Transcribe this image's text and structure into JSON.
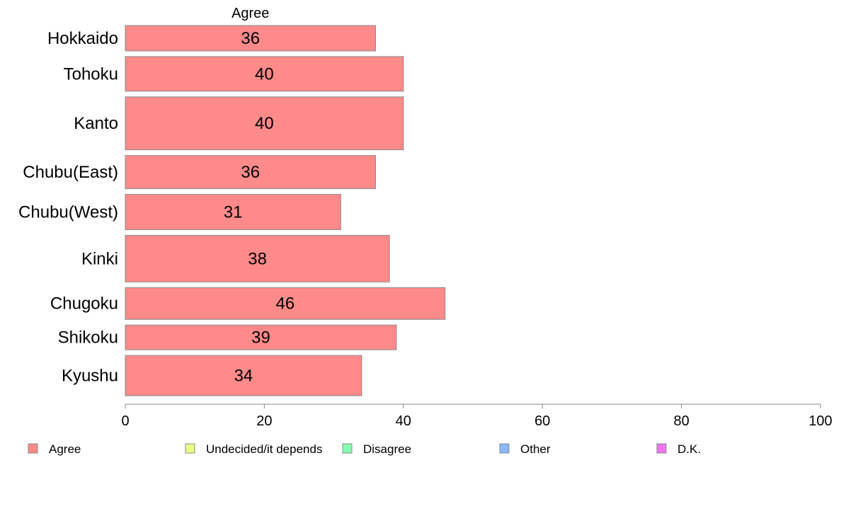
{
  "chart_data": {
    "type": "bar",
    "orientation": "horizontal",
    "column_title": "Agree",
    "categories": [
      "Hokkaido",
      "Tohoku",
      "Kanto",
      "Chubu(East)",
      "Chubu(West)",
      "Kinki",
      "Chugoku",
      "Shikoku",
      "Kyushu"
    ],
    "series": [
      {
        "name": "Agree",
        "values": [
          36,
          40,
          40,
          36,
          31,
          38,
          46,
          39,
          34
        ]
      }
    ],
    "relative_bar_widths": [
      36,
      49,
      75,
      47,
      50,
      66,
      45,
      35,
      57
    ],
    "xlim": [
      0,
      100
    ],
    "x_ticks": [
      0,
      20,
      40,
      60,
      80,
      100
    ],
    "legend": {
      "position": "bottom",
      "entries": [
        {
          "label": "Agree",
          "color": "#ff8a8a"
        },
        {
          "label": "Undecided/it depends",
          "color": "#eeff88"
        },
        {
          "label": "Disagree",
          "color": "#88ffb0"
        },
        {
          "label": "Other",
          "color": "#88b8ff"
        },
        {
          "label": "D.K.",
          "color": "#ee77ee"
        }
      ]
    },
    "grid": false
  }
}
